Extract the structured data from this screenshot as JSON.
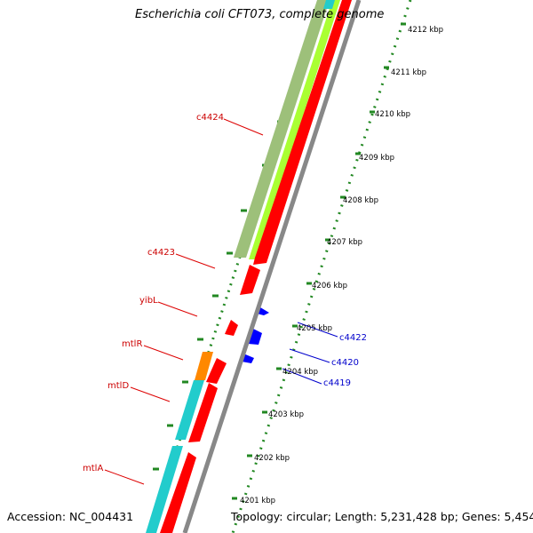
{
  "title": "Escherichia coli CFT073, complete genome",
  "accession": "Accession: NC_004431",
  "stats": "Topology: circular; Length: 5,231,428 bp; Genes: 5,454",
  "colors": {
    "forward_gene": "#0000ff",
    "reverse_gene": "#ff0000",
    "cog_green": "#9dc07a",
    "cog_lime": "#aaff33",
    "cog_cyan": "#22cccc",
    "cog_orange": "#ff8800",
    "backbone": "#888888",
    "ticks": "#228822"
  },
  "kbp_ticks": [
    "4212 kbp",
    "4211 kbp",
    "4210 kbp",
    "4209 kbp",
    "4208 kbp",
    "4207 kbp",
    "4206 kbp",
    "4205 kbp",
    "4204 kbp",
    "4203 kbp",
    "4202 kbp",
    "4201 kbp"
  ],
  "reverse_genes": [
    "c4424",
    "c4423",
    "yibL",
    "mtlR",
    "mtlD",
    "mtlA"
  ],
  "forward_genes": [
    "c4422",
    "c4420",
    "c4419"
  ]
}
